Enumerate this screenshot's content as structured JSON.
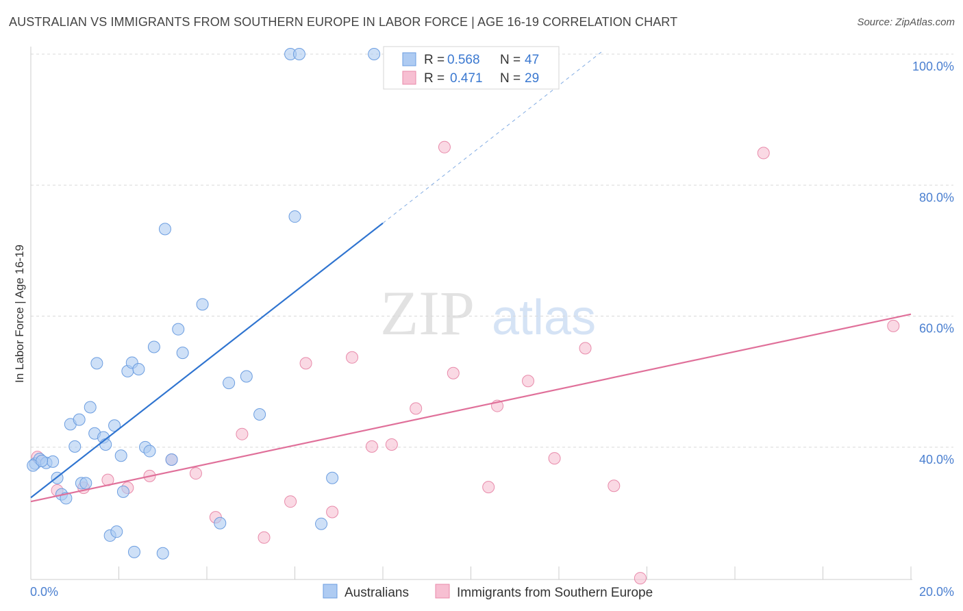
{
  "header": {
    "title": "AUSTRALIAN VS IMMIGRANTS FROM SOUTHERN EUROPE IN LABOR FORCE | AGE 16-19 CORRELATION CHART",
    "source": "Source: ZipAtlas.com"
  },
  "watermark": {
    "zip": "ZIP",
    "atlas": "atlas"
  },
  "colors": {
    "blue_fill": "#aecbf2",
    "blue_stroke": "#6b9de0",
    "blue_line": "#2f74d0",
    "pink_fill": "#f7bfd2",
    "pink_stroke": "#e88aaa",
    "pink_line": "#e0709a",
    "grid": "#d8d8d8",
    "axis_text": "#4a7fd0"
  },
  "chart_data": {
    "type": "scatter",
    "title": "AUSTRALIAN VS IMMIGRANTS FROM SOUTHERN EUROPE IN LABOR FORCE | AGE 16-19 CORRELATION CHART",
    "xlabel": "",
    "ylabel": "In Labor Force | Age 16-19",
    "xlim": [
      0,
      20
    ],
    "ylim": [
      21.5,
      101.5
    ],
    "x_tick_labels": [
      "0.0%",
      "20.0%"
    ],
    "x_tick_values": [
      0,
      20
    ],
    "y_ticks": [
      {
        "value": 40,
        "label": "40.0%"
      },
      {
        "value": 60,
        "label": "60.0%"
      },
      {
        "value": 80,
        "label": "80.0%"
      },
      {
        "value": 100,
        "label": "100.0%"
      }
    ],
    "grid": true,
    "legend": {
      "position": "top-center",
      "entries": [
        {
          "r_label": "R =",
          "r": "0.568",
          "n_label": "N =",
          "n": "47"
        },
        {
          "r_label": "R =",
          "r": "0.471",
          "n_label": "N =",
          "n": "29"
        }
      ]
    },
    "bottom_legend": [
      "Australians",
      "Immigrants from Southern Europe"
    ],
    "series": [
      {
        "name": "Australians",
        "trend": {
          "x0": 0,
          "y0": 32.3,
          "x1": 8.0,
          "y1": 74.2,
          "dash_to_x": 13.0,
          "dash_to_y": 100.5
        },
        "points": [
          [
            0.1,
            37.5
          ],
          [
            0.2,
            38.2
          ],
          [
            0.35,
            37.6
          ],
          [
            0.5,
            37.8
          ],
          [
            0.6,
            35.3
          ],
          [
            0.7,
            32.8
          ],
          [
            0.8,
            32.2
          ],
          [
            0.9,
            43.5
          ],
          [
            1.0,
            40.1
          ],
          [
            1.1,
            44.2
          ],
          [
            1.15,
            34.5
          ],
          [
            1.25,
            34.5
          ],
          [
            1.35,
            46.1
          ],
          [
            1.45,
            42.1
          ],
          [
            1.5,
            52.8
          ],
          [
            1.65,
            41.5
          ],
          [
            1.7,
            40.4
          ],
          [
            1.8,
            26.5
          ],
          [
            1.9,
            43.3
          ],
          [
            1.95,
            27.1
          ],
          [
            2.05,
            38.7
          ],
          [
            2.1,
            33.2
          ],
          [
            2.2,
            51.6
          ],
          [
            2.3,
            52.9
          ],
          [
            2.35,
            24.0
          ],
          [
            2.45,
            51.9
          ],
          [
            2.6,
            40.0
          ],
          [
            2.7,
            39.4
          ],
          [
            2.8,
            55.3
          ],
          [
            3.0,
            23.8
          ],
          [
            3.05,
            73.3
          ],
          [
            3.2,
            38.1
          ],
          [
            3.35,
            58.0
          ],
          [
            3.45,
            54.4
          ],
          [
            3.9,
            61.8
          ],
          [
            4.3,
            28.4
          ],
          [
            4.5,
            49.8
          ],
          [
            4.9,
            50.8
          ],
          [
            5.2,
            45.0
          ],
          [
            5.9,
            100.0
          ],
          [
            6.0,
            75.2
          ],
          [
            6.1,
            100.0
          ],
          [
            6.6,
            28.3
          ],
          [
            6.85,
            35.3
          ],
          [
            7.8,
            100.0
          ],
          [
            0.05,
            37.2
          ],
          [
            0.25,
            37.9
          ]
        ]
      },
      {
        "name": "Immigrants from Southern Europe",
        "trend": {
          "x0": 0,
          "y0": 31.7,
          "x1": 20,
          "y1": 60.3
        },
        "points": [
          [
            0.15,
            38.5
          ],
          [
            0.6,
            33.4
          ],
          [
            1.2,
            33.8
          ],
          [
            1.75,
            35.0
          ],
          [
            2.2,
            33.8
          ],
          [
            2.7,
            35.6
          ],
          [
            3.2,
            38.1
          ],
          [
            3.75,
            36.0
          ],
          [
            4.2,
            29.3
          ],
          [
            4.8,
            42.0
          ],
          [
            5.3,
            26.2
          ],
          [
            5.9,
            31.7
          ],
          [
            6.25,
            52.8
          ],
          [
            6.85,
            30.1
          ],
          [
            7.3,
            53.7
          ],
          [
            7.75,
            40.1
          ],
          [
            8.2,
            40.4
          ],
          [
            8.75,
            45.9
          ],
          [
            9.4,
            85.8
          ],
          [
            9.6,
            51.3
          ],
          [
            10.4,
            33.9
          ],
          [
            10.6,
            46.3
          ],
          [
            11.3,
            50.1
          ],
          [
            11.9,
            38.3
          ],
          [
            12.6,
            55.1
          ],
          [
            13.25,
            34.1
          ],
          [
            13.85,
            20.0
          ],
          [
            16.65,
            84.9
          ],
          [
            19.6,
            58.5
          ]
        ]
      }
    ]
  }
}
